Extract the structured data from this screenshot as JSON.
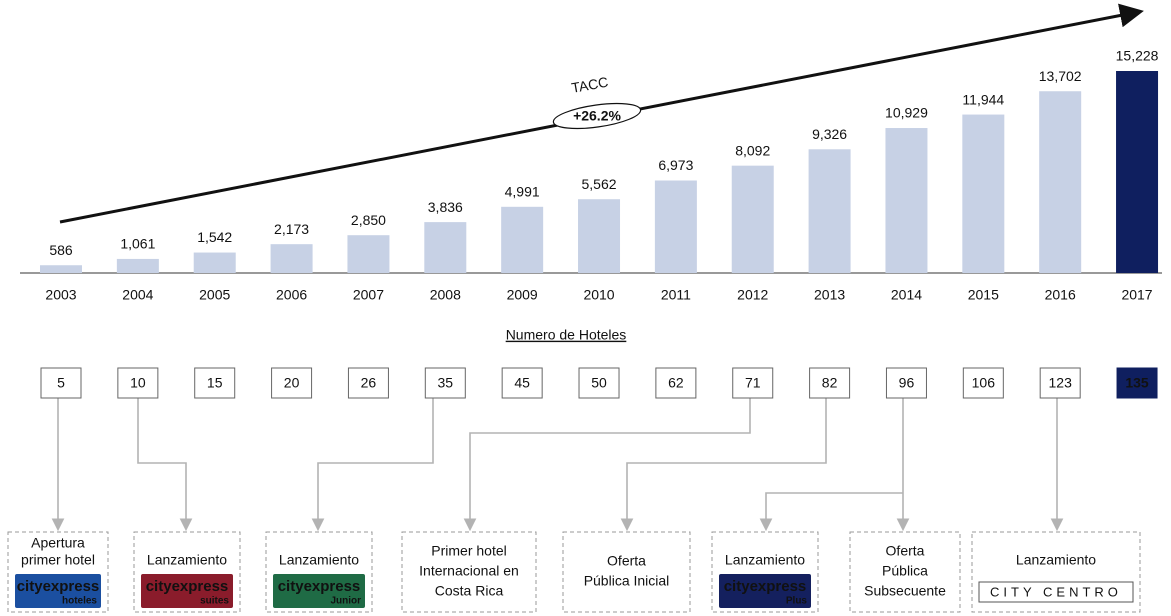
{
  "chart_data": {
    "type": "bar",
    "categories": [
      "2003",
      "2004",
      "2005",
      "2006",
      "2007",
      "2008",
      "2009",
      "2010",
      "2011",
      "2012",
      "2013",
      "2014",
      "2015",
      "2016",
      "2017"
    ],
    "values": [
      586,
      1061,
      1542,
      2173,
      2850,
      3836,
      4991,
      5562,
      6973,
      8092,
      9326,
      10929,
      11944,
      13702,
      15228
    ],
    "value_labels": [
      "586",
      "1,061",
      "1,542",
      "2,173",
      "2,850",
      "3,836",
      "4,991",
      "5,562",
      "6,973",
      "8,092",
      "9,326",
      "10,929",
      "11,944",
      "13,702",
      "15,228"
    ],
    "colors": [
      "#c7d1e5",
      "#c7d1e5",
      "#c7d1e5",
      "#c7d1e5",
      "#c7d1e5",
      "#c7d1e5",
      "#c7d1e5",
      "#c7d1e5",
      "#c7d1e5",
      "#c7d1e5",
      "#c7d1e5",
      "#c7d1e5",
      "#c7d1e5",
      "#c7d1e5",
      "#0f1f5f"
    ],
    "annotation": "TACC",
    "growth_label": "+26.2%"
  },
  "hotels": {
    "title": "Numero de Hoteles",
    "counts": [
      5,
      10,
      15,
      20,
      26,
      35,
      45,
      50,
      62,
      71,
      82,
      96,
      106,
      123,
      135
    ],
    "highlight_index": 14,
    "highlight_color": "#0f1f5f"
  },
  "milestones": [
    {
      "lines": [
        "Apertura",
        "primer hotel"
      ],
      "logo": {
        "brand": "cityexpress",
        "sub": "hoteles",
        "color": "#1b4fa0"
      }
    },
    {
      "lines": [
        "Lanzamiento"
      ],
      "logo": {
        "brand": "cityexpress",
        "sub": "suites",
        "color": "#8a1c2b"
      }
    },
    {
      "lines": [
        "Lanzamiento"
      ],
      "logo": {
        "brand": "cityexpress",
        "sub": "Junior",
        "color": "#1f6b45"
      }
    },
    {
      "lines": [
        "Primer hotel",
        "Internacional en",
        "Costa Rica"
      ]
    },
    {
      "lines": [
        "Oferta",
        "Pública Inicial"
      ]
    },
    {
      "lines": [
        "Lanzamiento"
      ],
      "logo": {
        "brand": "cityexpress",
        "sub": "Plus",
        "color": "#14205e"
      }
    },
    {
      "lines": [
        "Oferta",
        "Pública",
        "Subsecuente"
      ]
    },
    {
      "lines": [
        "Lanzamiento"
      ],
      "logo": {
        "brand": "CITY CENTRO",
        "color": "#ffffff"
      }
    }
  ]
}
